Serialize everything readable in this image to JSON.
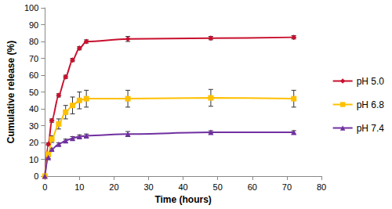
{
  "chart_data": {
    "type": "line",
    "x_label": "Time (hours)",
    "y_label": "Cumulative release (%)",
    "xlim": [
      0,
      80
    ],
    "xticks": [
      0,
      10,
      20,
      30,
      40,
      50,
      60,
      70,
      80
    ],
    "ylim": [
      0,
      100
    ],
    "yticks": [
      0,
      10,
      20,
      30,
      40,
      50,
      60,
      70,
      80,
      90,
      100
    ],
    "grid": false,
    "legend": "right",
    "x": [
      0,
      1,
      2,
      4,
      6,
      8,
      10,
      12,
      24,
      48,
      72
    ],
    "series": [
      {
        "name": "pH 5.0",
        "color": "#c8102e",
        "marker": "diamond",
        "line_style": "solid",
        "values": [
          0,
          19,
          33,
          48,
          59,
          69,
          76,
          80,
          81.5,
          82,
          82.5
        ],
        "errors": [
          0,
          0.8,
          1,
          1,
          1,
          1,
          1,
          1,
          1.5,
          1,
          1
        ]
      },
      {
        "name": "pH 6.8",
        "color": "#ffc000",
        "marker": "square",
        "line_style": "solid",
        "values": [
          0,
          13,
          22,
          31,
          38,
          42,
          45,
          46,
          46,
          46.5,
          46
        ],
        "errors": [
          0,
          1,
          2,
          3,
          4,
          5,
          5,
          5,
          5,
          5,
          5
        ]
      },
      {
        "name": "pH 7.4",
        "color": "#7030a0",
        "marker": "triangle",
        "line_style": "solid",
        "values": [
          0,
          11,
          16,
          19,
          21,
          22.5,
          23.5,
          24,
          25,
          26,
          26
        ],
        "errors": [
          0,
          0.5,
          0.5,
          0.8,
          1,
          1,
          1,
          1,
          1.5,
          1,
          1
        ]
      }
    ]
  }
}
